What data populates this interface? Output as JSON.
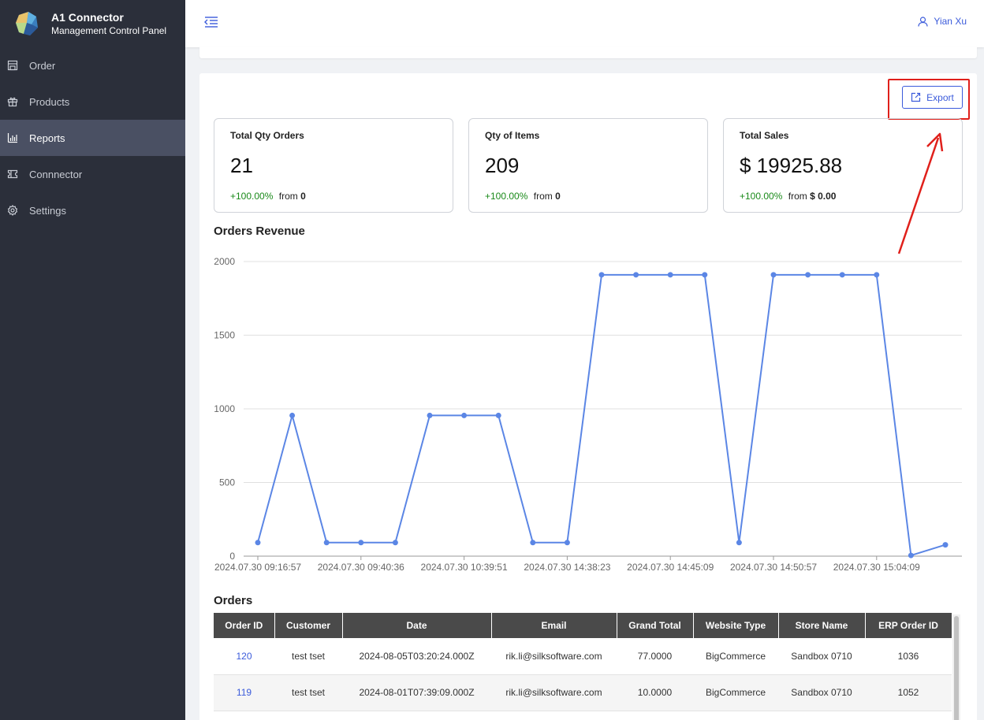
{
  "brand": {
    "title": "A1 Connector",
    "subtitle": "Management Control Panel"
  },
  "sidebar": {
    "items": [
      {
        "label": "Order",
        "icon": "store-icon",
        "active": false
      },
      {
        "label": "Products",
        "icon": "gift-icon",
        "active": false
      },
      {
        "label": "Reports",
        "icon": "bar-chart-icon",
        "active": true
      },
      {
        "label": "Connnector",
        "icon": "ticket-icon",
        "active": false
      },
      {
        "label": "Settings",
        "icon": "gear-icon",
        "active": false
      }
    ]
  },
  "header": {
    "user_name": "Yian Xu"
  },
  "toolbar": {
    "export_label": "Export"
  },
  "cards": [
    {
      "title": "Total Qty Orders",
      "value": "21",
      "change": "+100.00%",
      "from_label": "from",
      "from_value": "0"
    },
    {
      "title": "Qty of Items",
      "value": "209",
      "change": "+100.00%",
      "from_label": "from",
      "from_value": "0"
    },
    {
      "title": "Total Sales",
      "value": "$ 19925.88",
      "change": "+100.00%",
      "from_label": "from",
      "from_value": "$ 0.00"
    }
  ],
  "chart_title": "Orders Revenue",
  "chart_data": {
    "type": "line",
    "title": "Orders Revenue",
    "xlabel": "",
    "ylabel": "",
    "ylim": [
      0,
      2000
    ],
    "yticks": [
      0,
      500,
      1000,
      1500,
      2000
    ],
    "x_tick_labels": [
      "2024.07.30 09:16:57",
      "2024.07.30 09:40:36",
      "2024.07.30 10:39:51",
      "2024.07.30 14:38:23",
      "2024.07.30 14:45:09",
      "2024.07.30 14:50:57",
      "2024.07.30 15:04:09"
    ],
    "grid": true,
    "color": "#5b86e5",
    "values": [
      92,
      955,
      92,
      92,
      92,
      955,
      955,
      955,
      92,
      92,
      1910,
      1910,
      1910,
      1910,
      92,
      1910,
      1910,
      1910,
      1910,
      5,
      77
    ]
  },
  "orders_title": "Orders",
  "table": {
    "columns": [
      "Order ID",
      "Customer",
      "Date",
      "Email",
      "Grand Total",
      "Website Type",
      "Store Name",
      "ERP Order ID"
    ],
    "rows": [
      [
        "120",
        "test tset",
        "2024-08-05T03:20:24.000Z",
        "rik.li@silksoftware.com",
        "77.0000",
        "BigCommerce",
        "Sandbox 0710",
        "1036"
      ],
      [
        "119",
        "test tset",
        "2024-08-01T07:39:09.000Z",
        "rik.li@silksoftware.com",
        "10.0000",
        "BigCommerce",
        "Sandbox 0710",
        "1052"
      ]
    ]
  }
}
